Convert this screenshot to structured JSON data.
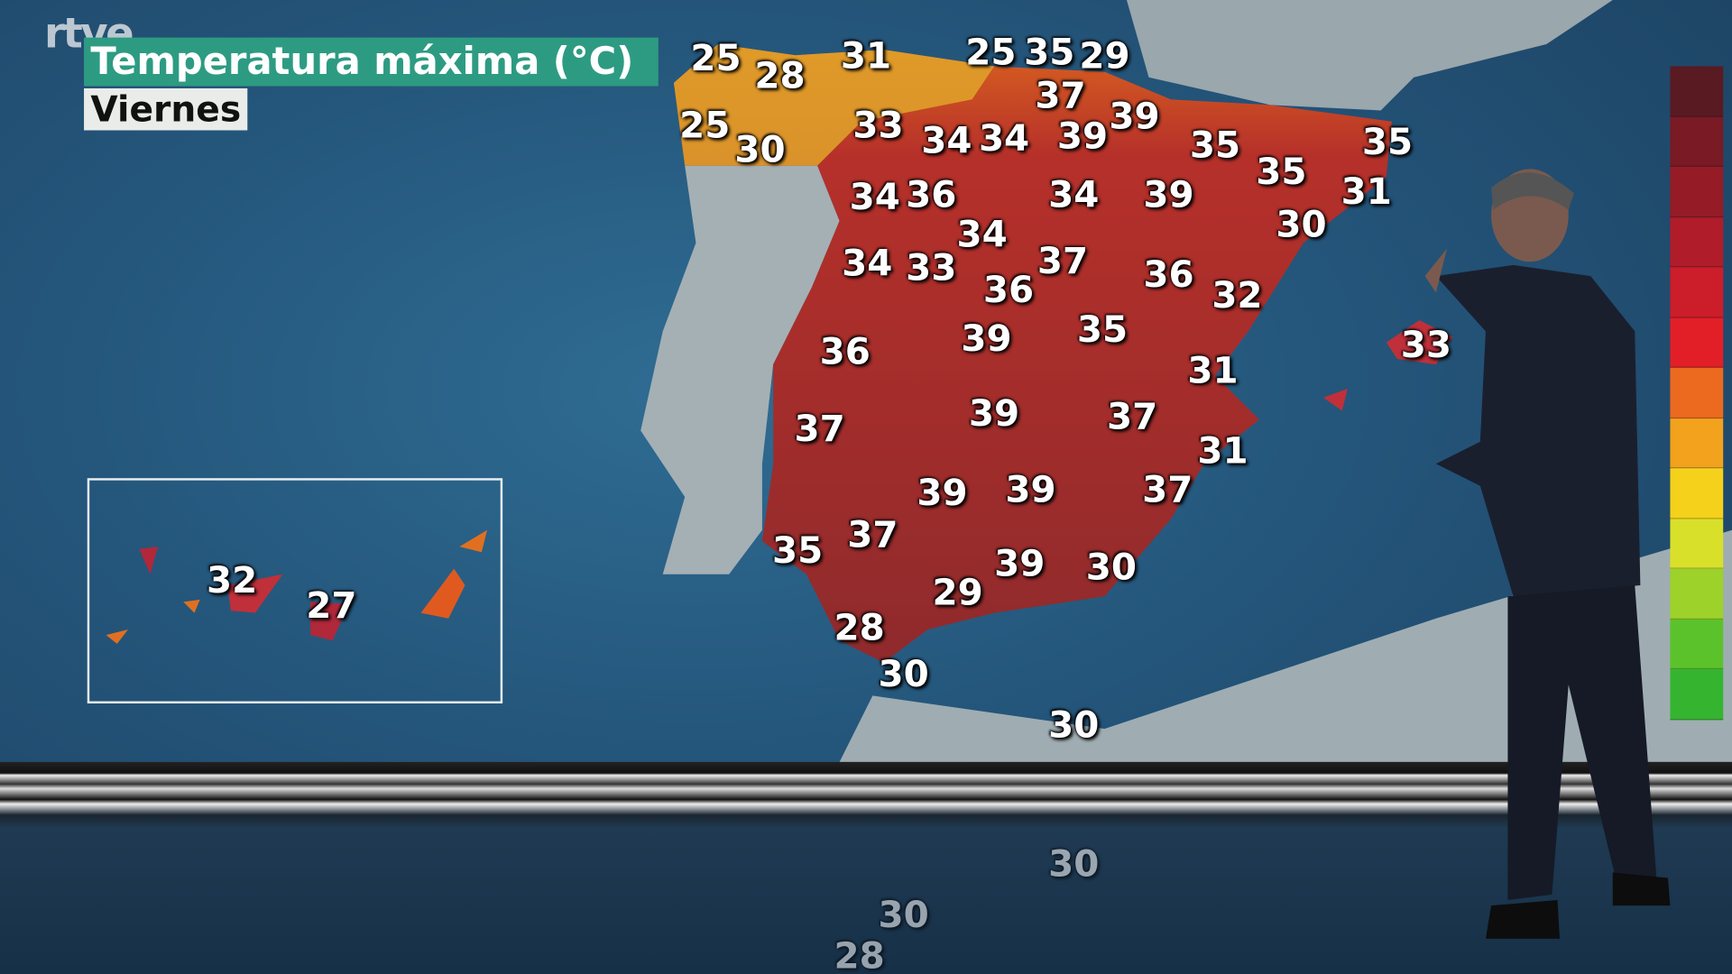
{
  "broadcaster_logo": "rtve",
  "title": "Temperatura máxima (°C)",
  "day": "Viernes",
  "peninsula_temps": [
    "25",
    "28",
    "31",
    "25",
    "35",
    "29",
    "37",
    "25",
    "30",
    "33",
    "34",
    "34",
    "39",
    "39",
    "35",
    "35",
    "35",
    "31",
    "30",
    "34",
    "36",
    "34",
    "34",
    "39",
    "34",
    "33",
    "37",
    "36",
    "36",
    "32",
    "36",
    "39",
    "35",
    "31",
    "33",
    "37",
    "39",
    "37",
    "31",
    "39",
    "39",
    "37",
    "35",
    "37",
    "39",
    "29",
    "30",
    "28",
    "30",
    "30"
  ],
  "canary_temps": [
    "32",
    "27"
  ],
  "reflection_temps": [
    "30",
    "30",
    "28"
  ],
  "legend_colors": [
    "#5a1a22",
    "#7a1a25",
    "#951b27",
    "#b01c2a",
    "#cc1d2a",
    "#e21f26",
    "#ec6a1f",
    "#f2a21d",
    "#f5d11c",
    "#d9e02a",
    "#9cd22a",
    "#5cc22c",
    "#35b52f"
  ]
}
